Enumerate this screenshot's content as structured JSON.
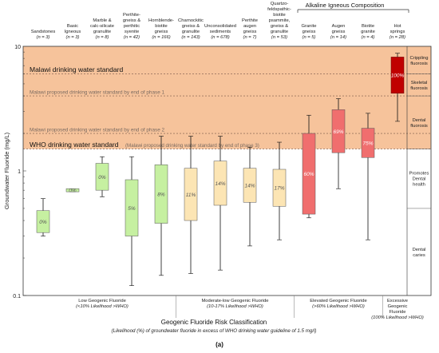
{
  "chart_data": {
    "type": "box",
    "y_scale": "log",
    "ylim": [
      0.1,
      10
    ],
    "ylabel": "Groundwater Fluoride (mg/L)",
    "y_tick_labels": [
      "10",
      "1",
      "0.1"
    ],
    "y_ticks": [
      10,
      1,
      0.1
    ],
    "xlabel": "Geogenic Fluoride Risk Classification",
    "xsublabel": "(Likelihood (%) of groundwater fluoride in excess of WHO drinking water guideline of 1.5 mg/l)",
    "panel_label": "(a)",
    "group_header": "Alkaline Igneous Composition",
    "categories": [
      {
        "name": [
          "Sandstones"
        ],
        "n": "(n = 3)",
        "min": 0.3,
        "q1": 0.32,
        "q3": 0.48,
        "max": 0.6,
        "pct": "0%",
        "color": "#c6f0a1"
      },
      {
        "name": [
          "Basic",
          "Igneous"
        ],
        "n": "(n = 3)",
        "min": 0.68,
        "q1": 0.68,
        "q3": 0.72,
        "max": 0.72,
        "pct": "0%",
        "color": "#c6f0a1"
      },
      {
        "name": [
          "Marble &",
          "calc-silicate",
          "granulite"
        ],
        "n": "(n = 8)",
        "min": 0.62,
        "q1": 0.7,
        "q3": 1.15,
        "max": 1.3,
        "pct": "0%",
        "color": "#c6f0a1"
      },
      {
        "name": [
          "Perthite-",
          "gneiss &",
          "perthitic",
          "syenite"
        ],
        "n": "(n = 42)",
        "min": 0.12,
        "q1": 0.3,
        "q3": 0.85,
        "max": 1.3,
        "pct": "5%",
        "color": "#c6f0a1"
      },
      {
        "name": [
          "Hornblende-",
          "biotite",
          "gneiss"
        ],
        "n": "(n = 166)",
        "min": 0.145,
        "q1": 0.38,
        "q3": 1.12,
        "max": 1.9,
        "pct": "8%",
        "color": "#c6f0a1"
      },
      {
        "name": [
          "Charnockitic",
          "gneiss &",
          "granulite"
        ],
        "n": "(n = 143)",
        "min": 0.15,
        "q1": 0.4,
        "q3": 1.05,
        "max": 1.9,
        "pct": "11%",
        "color": "#fce5b4"
      },
      {
        "name": [
          "Unconsolidated",
          "sediments"
        ],
        "n": "(n = 678)",
        "min": 0.16,
        "q1": 0.53,
        "q3": 1.2,
        "max": 1.9,
        "pct": "14%",
        "color": "#fce5b4"
      },
      {
        "name": [
          "Perthite",
          "augen",
          "gneiss"
        ],
        "n": "(n = 7)",
        "min": 0.25,
        "q1": 0.56,
        "q3": 1.05,
        "max": 1.55,
        "pct": "14%",
        "color": "#fce5b4"
      },
      {
        "name": [
          "Quartzo-",
          "feldspathic-",
          "biotite",
          "psammite,",
          "gneiss &",
          "granulite"
        ],
        "n": "(n = 53)",
        "min": 0.28,
        "q1": 0.52,
        "q3": 1.03,
        "max": 1.7,
        "pct": "17%",
        "color": "#fce5b4"
      },
      {
        "name": [
          "Granite",
          "gneiss"
        ],
        "n": "(n = 5)",
        "min": 0.42,
        "q1": 0.45,
        "q3": 2.0,
        "max": 2.8,
        "pct": "60%",
        "color": "#f06e6e"
      },
      {
        "name": [
          "Augen",
          "gneiss"
        ],
        "n": "(n = 14)",
        "min": 0.72,
        "q1": 1.4,
        "q3": 3.1,
        "max": 3.8,
        "pct": "69%",
        "color": "#f06e6e"
      },
      {
        "name": [
          "Biotite",
          "granite"
        ],
        "n": "(n = 4)",
        "min": 0.28,
        "q1": 1.28,
        "q3": 2.2,
        "max": 2.9,
        "pct": "75%",
        "color": "#f06e6e"
      },
      {
        "name": [
          "Hot",
          "springs"
        ],
        "n": "(n = 28)",
        "min": 2.5,
        "q1": 4.2,
        "q3": 8.2,
        "max": 8.8,
        "pct": "100%",
        "color": "#c00000"
      }
    ],
    "reference_lines": [
      {
        "value": 6.0,
        "label": "Malawi drinking water standard",
        "style": "major"
      },
      {
        "value": 4.0,
        "label": "Malawi proposed drinking water standard by end of phase 1",
        "style": "minor"
      },
      {
        "value": 2.0,
        "label": "Malawi proposed drinking water standard by end of phase 2",
        "style": "minor"
      },
      {
        "value": 1.5,
        "label": "WHO drinking water standard",
        "style": "major",
        "suffix": "(Malawi proposed drinking water standard by end of phase 3)"
      }
    ],
    "shaded_band": {
      "from": 1.5,
      "to": 10,
      "color": "#f5b98a"
    },
    "health_zones": [
      {
        "label": [
          "Crippling",
          "fluorosis"
        ],
        "from": 6,
        "to": 10
      },
      {
        "label": [
          "Skeletal",
          "fluorosis"
        ],
        "from": 4,
        "to": 6
      },
      {
        "label": [
          "Dental",
          "fluorosis"
        ],
        "from": 1.5,
        "to": 4
      },
      {
        "label": [
          "Promotes",
          "Dental",
          "health"
        ],
        "from": 0.5,
        "to": 1.5
      },
      {
        "label": [
          "Dental",
          "caries"
        ],
        "from": 0.1,
        "to": 0.5
      }
    ],
    "risk_groups": [
      {
        "label": [
          "Low Geogenic Fluoride",
          "(<10% Likelihood >WHO)"
        ],
        "start": 0,
        "end": 4
      },
      {
        "label": [
          "Moderate-low Geogenic Fluoride",
          "(10-17% Likelihood >WHO)"
        ],
        "start": 5,
        "end": 8
      },
      {
        "label": [
          "Elevated Geogenic Fluoride",
          "(>60% Likelihood >WHO)"
        ],
        "start": 9,
        "end": 11
      },
      {
        "label": [
          "Excessive",
          "Geogenic",
          "Fluoride",
          "(100% Likelihood >WHO)"
        ],
        "start": 12,
        "end": 12
      }
    ]
  }
}
